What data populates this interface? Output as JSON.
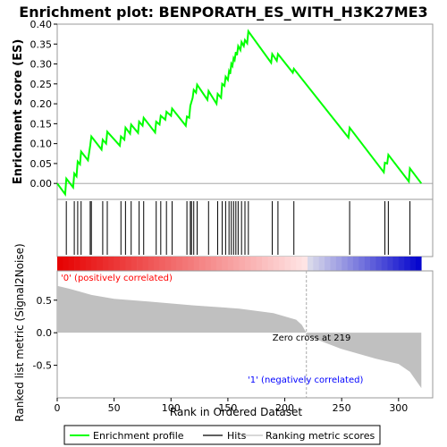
{
  "chart_data": [
    {
      "type": "line",
      "title": "Enrichment plot: BENPORATH_ES_WITH_H3K27ME3",
      "ylabel": "Enrichment score (ES)",
      "xlim": [
        0,
        330
      ],
      "ylim": [
        -0.04,
        0.4
      ],
      "yticks": [
        "0.00",
        "0.05",
        "0.10",
        "0.15",
        "0.20",
        "0.25",
        "0.30",
        "0.35",
        "0.40"
      ],
      "series": [
        {
          "name": "Enrichment profile",
          "color": "#00ff00",
          "x": [
            0,
            7,
            8,
            14,
            15,
            17,
            18,
            20,
            21,
            27,
            29,
            30,
            39,
            40,
            43,
            44,
            55,
            56,
            59,
            60,
            64,
            65,
            71,
            72,
            75,
            76,
            86,
            87,
            90,
            91,
            95,
            96,
            100,
            101,
            113,
            114,
            116,
            117,
            119,
            120,
            122,
            123,
            132,
            133,
            140,
            141,
            144,
            145,
            147,
            148,
            150,
            151,
            152,
            153,
            154,
            155,
            156,
            157,
            158,
            159,
            161,
            162,
            164,
            165,
            167,
            168,
            188,
            189,
            193,
            194,
            207,
            208,
            256,
            257,
            287,
            288,
            290,
            291,
            309,
            310,
            320
          ],
          "y": [
            0.0,
            -0.027,
            0.012,
            -0.01,
            0.025,
            0.018,
            0.055,
            0.048,
            0.08,
            0.058,
            0.095,
            0.118,
            0.085,
            0.11,
            0.1,
            0.13,
            0.095,
            0.118,
            0.11,
            0.14,
            0.125,
            0.148,
            0.127,
            0.155,
            0.145,
            0.165,
            0.128,
            0.155,
            0.148,
            0.17,
            0.16,
            0.18,
            0.17,
            0.188,
            0.145,
            0.168,
            0.165,
            0.195,
            0.215,
            0.235,
            0.228,
            0.248,
            0.21,
            0.232,
            0.2,
            0.225,
            0.215,
            0.25,
            0.245,
            0.268,
            0.26,
            0.282,
            0.275,
            0.3,
            0.295,
            0.315,
            0.31,
            0.33,
            0.322,
            0.345,
            0.335,
            0.355,
            0.345,
            0.36,
            0.352,
            0.382,
            0.303,
            0.325,
            0.308,
            0.325,
            0.278,
            0.288,
            0.115,
            0.14,
            0.028,
            0.052,
            0.05,
            0.072,
            0.005,
            0.038,
            0.0
          ]
        }
      ]
    },
    {
      "type": "scatter",
      "title": "",
      "series": [
        {
          "name": "Hits",
          "color": "#000000",
          "x": [
            8,
            15,
            18,
            21,
            29,
            30,
            40,
            44,
            56,
            60,
            65,
            72,
            76,
            87,
            91,
            96,
            101,
            114,
            117,
            118,
            120,
            123,
            133,
            141,
            145,
            148,
            151,
            153,
            155,
            157,
            159,
            162,
            165,
            168,
            189,
            194,
            208,
            257,
            288,
            291,
            310
          ]
        }
      ]
    },
    {
      "type": "bar",
      "title": "",
      "ylabel": "Ranked list metric (Signal2Noise)",
      "xlabel": "Rank in Ordered Dataset",
      "xlim": [
        0,
        330
      ],
      "ylim": [
        -1.0,
        0.95
      ],
      "yticks": [
        "0.5",
        "0.0",
        "-0.5"
      ],
      "xticks": [
        "0",
        "50",
        "100",
        "150",
        "200",
        "250",
        "300"
      ],
      "series": [
        {
          "name": "Ranking metric scores",
          "color": "#c0c0c0",
          "x": [
            0,
            10,
            20,
            30,
            50,
            80,
            120,
            160,
            190,
            210,
            215,
            219,
            220,
            250,
            280,
            300,
            310,
            320
          ],
          "y": [
            0.72,
            0.68,
            0.63,
            0.58,
            0.52,
            0.48,
            0.42,
            0.37,
            0.3,
            0.2,
            0.12,
            0.0,
            -0.05,
            -0.25,
            -0.4,
            -0.48,
            -0.6,
            -0.85
          ]
        }
      ],
      "annotations": {
        "positive": "'0' (positively correlated)",
        "negative": "'1' (negatively correlated)",
        "zero_cross": "Zero cross at 219",
        "zero_cross_x": 219
      }
    }
  ],
  "legend": {
    "items": [
      {
        "label": "Enrichment profile",
        "color": "#00ff00"
      },
      {
        "label": "Hits",
        "color": "#000000"
      },
      {
        "label": "Ranking metric scores",
        "color": "#c0c0c0"
      }
    ]
  }
}
